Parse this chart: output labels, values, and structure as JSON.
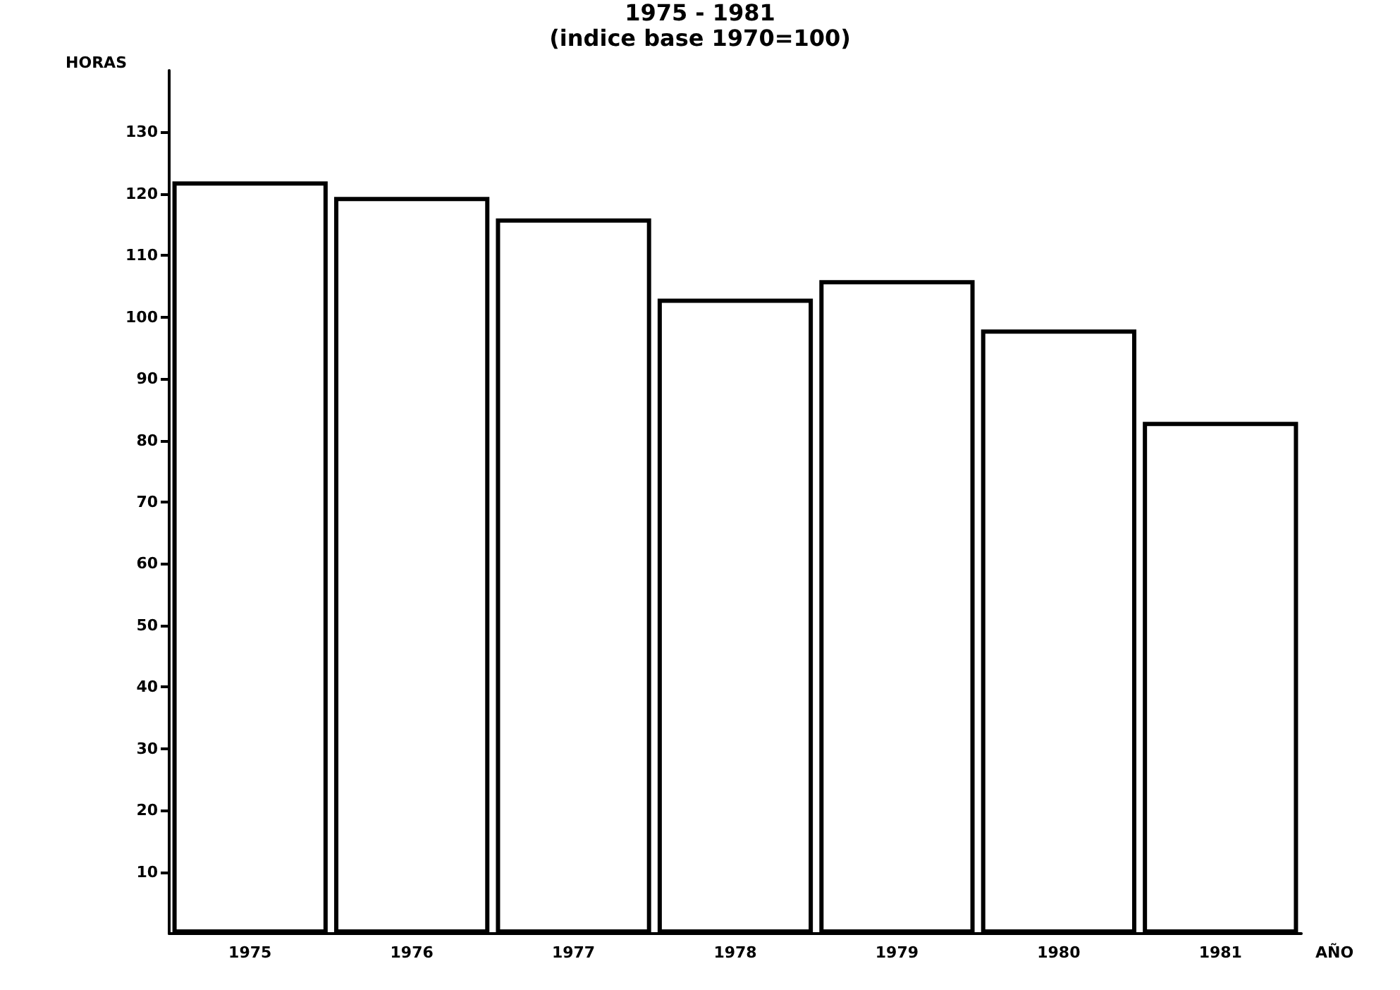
{
  "chart_data": {
    "type": "bar",
    "title": "1975 - 1981",
    "subtitle": "(indice base 1970=100)",
    "ylabel": "HORAS",
    "xlabel": "AÑO",
    "categories": [
      "1975",
      "1976",
      "1977",
      "1978",
      "1979",
      "1980",
      "1981"
    ],
    "values": [
      122,
      119.5,
      116,
      103,
      106,
      98,
      83
    ],
    "color": "#ffffff",
    "ylim": [
      0,
      140
    ],
    "yticks": [
      10,
      20,
      30,
      40,
      50,
      60,
      70,
      80,
      90,
      100,
      110,
      120,
      130
    ],
    "grid": false
  }
}
